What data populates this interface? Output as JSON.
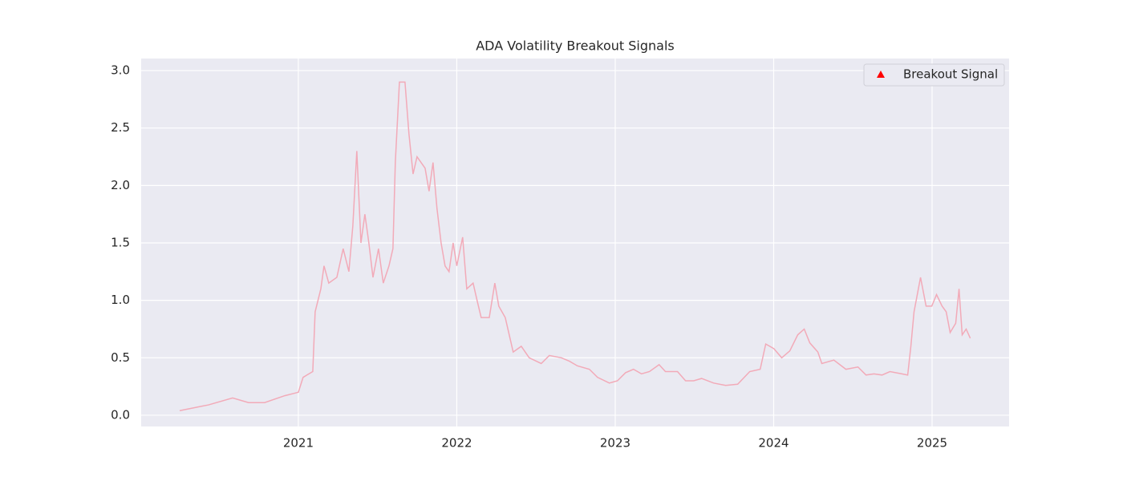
{
  "chart_data": {
    "type": "line",
    "title": "ADA Volatility Breakout Signals",
    "xlim": [
      2020.008,
      2025.486
    ],
    "ylim": [
      -0.098,
      3.105
    ],
    "xticks": [
      2021,
      2022,
      2023,
      2024,
      2025
    ],
    "yticks": [
      {
        "value": 0,
        "label": "0.0"
      },
      {
        "value": 0.5,
        "label": "0.5"
      },
      {
        "value": 1,
        "label": "1.0"
      },
      {
        "value": 1.5,
        "label": "1.5"
      },
      {
        "value": 2,
        "label": "2.0"
      },
      {
        "value": 2.5,
        "label": "2.5"
      },
      {
        "value": 3,
        "label": "3.0"
      }
    ],
    "grid": true,
    "background": "#eaeaf2",
    "legend": "upper right",
    "series": [
      {
        "color": "#f2aab8",
        "x": [
          2020.251,
          2020.433,
          2020.585,
          2020.686,
          2020.787,
          2020.914,
          2021.0,
          2021.03,
          2021.091,
          2021.106,
          2021.142,
          2021.162,
          2021.192,
          2021.243,
          2021.283,
          2021.319,
          2021.344,
          2021.369,
          2021.395,
          2021.42,
          2021.445,
          2021.471,
          2021.506,
          2021.536,
          2021.572,
          2021.597,
          2021.612,
          2021.638,
          2021.673,
          2021.698,
          2021.724,
          2021.749,
          2021.8,
          2021.825,
          2021.85,
          2021.875,
          2021.901,
          2021.926,
          2021.951,
          2021.977,
          2022.0,
          2022.037,
          2022.063,
          2022.103,
          2022.128,
          2022.154,
          2022.205,
          2022.24,
          2022.265,
          2022.306,
          2022.356,
          2022.407,
          2022.457,
          2022.533,
          2022.584,
          2022.66,
          2022.711,
          2022.761,
          2022.837,
          2022.888,
          2022.963,
          2023.014,
          2023.065,
          2023.115,
          2023.166,
          2023.216,
          2023.277,
          2023.317,
          2023.393,
          2023.444,
          2023.495,
          2023.545,
          2023.621,
          2023.697,
          2023.773,
          2023.849,
          2023.915,
          2023.95,
          2024.001,
          2024.051,
          2024.102,
          2024.152,
          2024.193,
          2024.228,
          2024.279,
          2024.304,
          2024.38,
          2024.456,
          2024.532,
          2024.583,
          2024.633,
          2024.684,
          2024.734,
          2024.81,
          2024.846,
          2024.866,
          2024.886,
          2024.927,
          2024.962,
          2024.998,
          2025.028,
          2025.063,
          2025.089,
          2025.114,
          2025.149,
          2025.17,
          2025.19,
          2025.215,
          2025.241
        ],
        "values": [
          0.04,
          0.09,
          0.15,
          0.11,
          0.11,
          0.17,
          0.2,
          0.33,
          0.38,
          0.9,
          1.1,
          1.3,
          1.15,
          1.2,
          1.45,
          1.25,
          1.65,
          2.3,
          1.5,
          1.75,
          1.5,
          1.2,
          1.45,
          1.15,
          1.3,
          1.45,
          2.2,
          2.9,
          2.9,
          2.45,
          2.1,
          2.25,
          2.15,
          1.95,
          2.2,
          1.8,
          1.5,
          1.3,
          1.25,
          1.5,
          1.3,
          1.55,
          1.1,
          1.15,
          1.0,
          0.85,
          0.85,
          1.15,
          0.95,
          0.85,
          0.55,
          0.6,
          0.5,
          0.45,
          0.52,
          0.5,
          0.47,
          0.43,
          0.4,
          0.33,
          0.28,
          0.3,
          0.37,
          0.4,
          0.36,
          0.38,
          0.44,
          0.38,
          0.38,
          0.3,
          0.3,
          0.32,
          0.28,
          0.26,
          0.27,
          0.38,
          0.4,
          0.62,
          0.58,
          0.5,
          0.56,
          0.7,
          0.75,
          0.63,
          0.55,
          0.45,
          0.48,
          0.4,
          0.42,
          0.35,
          0.36,
          0.35,
          0.38,
          0.36,
          0.35,
          0.6,
          0.9,
          1.2,
          0.95,
          0.95,
          1.05,
          0.95,
          0.9,
          0.72,
          0.8,
          1.1,
          0.7,
          0.75,
          0.67
        ]
      },
      {
        "name": "Breakout Signal",
        "color": "#ff0000",
        "marker": "triangle",
        "x": [],
        "values": []
      }
    ]
  }
}
